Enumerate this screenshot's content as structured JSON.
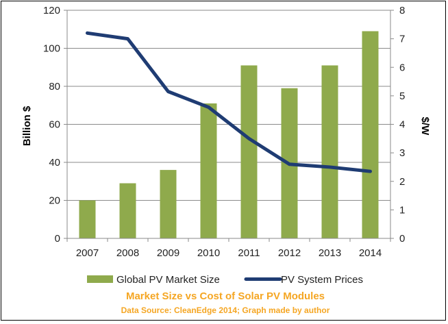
{
  "chart_data": {
    "type": "bar",
    "categories": [
      "2007",
      "2008",
      "2009",
      "2010",
      "2011",
      "2012",
      "2013",
      "2014"
    ],
    "series": [
      {
        "name": "Global PV Market Size",
        "type": "bar",
        "axis": "left",
        "color": "#8faa4c",
        "values": [
          20,
          29,
          36,
          71,
          91,
          79,
          91,
          109
        ]
      },
      {
        "name": "PV System Prices",
        "type": "line",
        "axis": "right",
        "color": "#1f3c73",
        "values": [
          7.2,
          7.0,
          5.15,
          4.6,
          3.5,
          2.6,
          2.5,
          2.35
        ]
      }
    ],
    "ylabel": "Billion $",
    "y2label": "$/W",
    "ylim": [
      0,
      120
    ],
    "y2lim": [
      0,
      8
    ],
    "yticks": [
      "0",
      "20",
      "40",
      "60",
      "80",
      "100",
      "120"
    ],
    "y2ticks": [
      "0",
      "1",
      "2",
      "3",
      "4",
      "5",
      "6",
      "7",
      "8"
    ],
    "grid": true,
    "legend": "bottom",
    "caption": "Market Size vs Cost of Solar PV Modules",
    "source": "Data Source: CleanEdge 2014; Graph made by author"
  }
}
